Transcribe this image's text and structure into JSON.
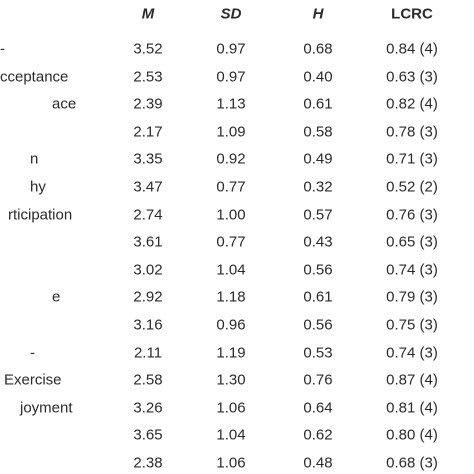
{
  "table": {
    "header": [
      "M",
      "SD",
      "H",
      "LCRC"
    ],
    "rows": [
      {
        "label": "-",
        "cells": [
          "3.52",
          "0.97",
          "0.68",
          "0.84 (4)"
        ]
      },
      {
        "label": "cceptance",
        "cells": [
          "2.53",
          "0.97",
          "0.40",
          "0.63 (3)"
        ]
      },
      {
        "label": "ace",
        "cells": [
          "2.39",
          "1.13",
          "0.61",
          "0.82 (4)"
        ]
      },
      {
        "cells": [
          "2.17",
          "1.09",
          "0.58",
          "0.78 (3)"
        ]
      },
      {
        "label": "n",
        "cells": [
          "3.35",
          "0.92",
          "0.49",
          "0.71 (3)"
        ]
      },
      {
        "label": "hy",
        "cells": [
          "3.47",
          "0.77",
          "0.32",
          "0.52 (2)"
        ]
      },
      {
        "label": "rticipation",
        "cells": [
          "2.74",
          "1.00",
          "0.57",
          "0.76 (3)"
        ]
      },
      {
        "cells": [
          "3.61",
          "0.77",
          "0.43",
          "0.65 (3)"
        ]
      },
      {
        "cells": [
          "3.02",
          "1.04",
          "0.56",
          "0.74 (3)"
        ]
      },
      {
        "label": "e",
        "cells": [
          "2.92",
          "1.18",
          "0.61",
          "0.79 (3)"
        ]
      },
      {
        "cells": [
          "3.16",
          "0.96",
          "0.56",
          "0.75 (3)"
        ]
      },
      {
        "label": "-",
        "cells": [
          "2.11",
          "1.19",
          "0.53",
          "0.74 (3)"
        ]
      },
      {
        "label": "Exercise",
        "cells": [
          "2.58",
          "1.30",
          "0.76",
          "0.87 (4)"
        ]
      },
      {
        "label": "joyment",
        "cells": [
          "3.26",
          "1.06",
          "0.64",
          "0.81 (4)"
        ]
      },
      {
        "cells": [
          "3.65",
          "1.04",
          "0.62",
          "0.80 (4)"
        ]
      },
      {
        "cells": [
          "2.38",
          "1.06",
          "0.48",
          "0.68 (3)"
        ]
      }
    ]
  }
}
